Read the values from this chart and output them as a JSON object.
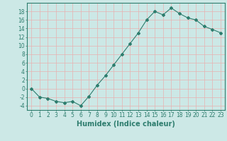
{
  "x": [
    0,
    1,
    2,
    3,
    4,
    5,
    6,
    7,
    8,
    9,
    10,
    11,
    12,
    13,
    14,
    15,
    16,
    17,
    18,
    19,
    20,
    21,
    22,
    23
  ],
  "y": [
    0,
    -2,
    -2.3,
    -3,
    -3.3,
    -3,
    -4,
    -1.8,
    0.8,
    3,
    5.5,
    8,
    10.5,
    13,
    16,
    18,
    17.2,
    18.8,
    17.5,
    16.5,
    16,
    14.5,
    13.8,
    13
  ],
  "line_color": "#2e7d6e",
  "marker": "D",
  "marker_size": 2,
  "bg_color": "#cce8e6",
  "grid_color": "#e8b0b0",
  "xlabel": "Humidex (Indice chaleur)",
  "ylabel": "",
  "xlim": [
    -0.5,
    23.5
  ],
  "ylim": [
    -5,
    20
  ],
  "yticks": [
    -4,
    -2,
    0,
    2,
    4,
    6,
    8,
    10,
    12,
    14,
    16,
    18
  ],
  "xticks": [
    0,
    1,
    2,
    3,
    4,
    5,
    6,
    7,
    8,
    9,
    10,
    11,
    12,
    13,
    14,
    15,
    16,
    17,
    18,
    19,
    20,
    21,
    22,
    23
  ],
  "tick_color": "#2e7d6e",
  "label_color": "#2e7d6e",
  "xlabel_fontsize": 7,
  "tick_fontsize": 5.5,
  "spine_color": "#2e7d6e"
}
